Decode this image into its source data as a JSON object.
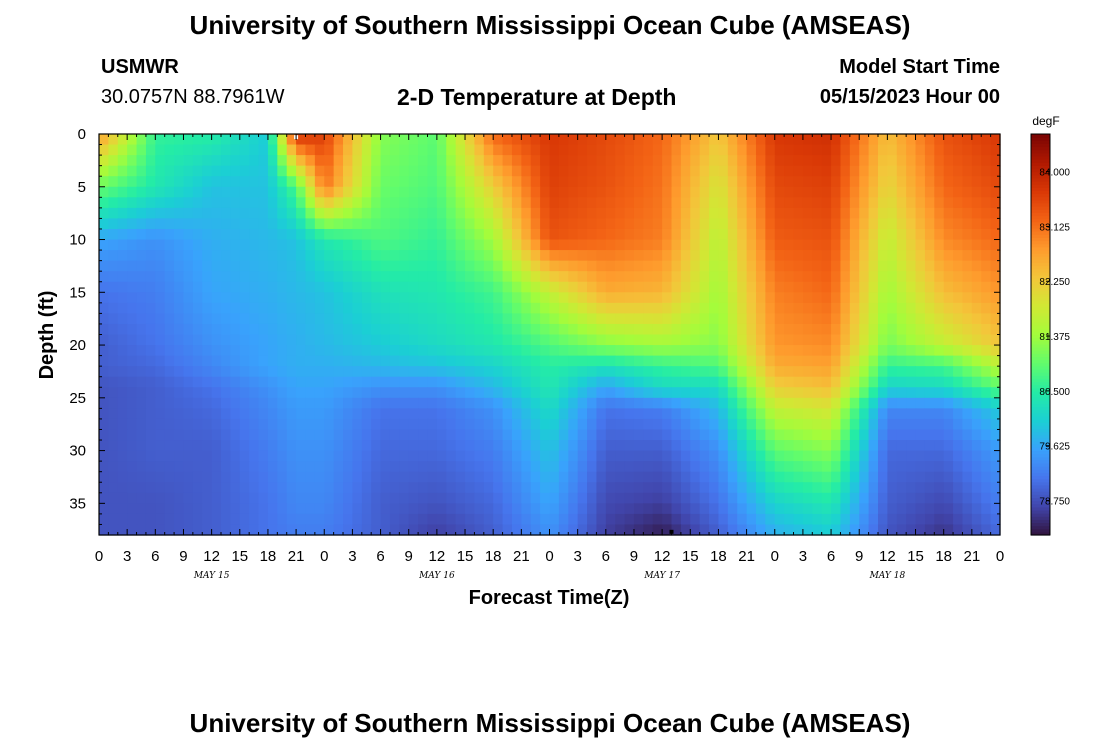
{
  "header": {
    "title": "University of Southern Mississippi Ocean Cube (AMSEAS)",
    "station": "USMWR",
    "coordinates": "30.0757N  88.7961W",
    "subtitle": "2-D Temperature at Depth",
    "model_start_label": "Model Start Time",
    "model_start_value": "05/15/2023 Hour 00"
  },
  "footer": {
    "title": "University of Southern Mississippi Ocean Cube (AMSEAS)"
  },
  "chart_data": {
    "type": "heatmap",
    "title": "2-D Temperature at Depth",
    "xlabel": "Forecast Time(Z)",
    "ylabel": "Depth (ft)",
    "x_hours_range": [
      0,
      96
    ],
    "x_tick_labels": [
      "0",
      "3",
      "6",
      "9",
      "12",
      "15",
      "18",
      "21",
      "0",
      "3",
      "6",
      "9",
      "12",
      "15",
      "18",
      "21",
      "0",
      "3",
      "6",
      "9",
      "12",
      "15",
      "18",
      "21",
      "0",
      "3",
      "6",
      "9",
      "12",
      "15",
      "18",
      "21",
      "0"
    ],
    "day_labels": [
      {
        "label": "MAY 15",
        "hour": 12
      },
      {
        "label": "MAY 16",
        "hour": 36
      },
      {
        "label": "MAY 17",
        "hour": 60
      },
      {
        "label": "MAY 18",
        "hour": 84
      }
    ],
    "y_range": [
      0,
      38
    ],
    "y_ticks": [
      0,
      5,
      10,
      15,
      20,
      25,
      30,
      35
    ],
    "colorbar": {
      "unit": "degF",
      "min": 78.2,
      "max": 84.6,
      "ticks": [
        "84.000",
        "83.125",
        "82.250",
        "81.375",
        "80.500",
        "79.625",
        "78.750"
      ],
      "colors": [
        "#30123b",
        "#4145ab",
        "#4675ed",
        "#39a2fc",
        "#1bcfd4",
        "#24eca6",
        "#61fc6c",
        "#a4fc3b",
        "#d1e834",
        "#f3c63a",
        "#fe9b2d",
        "#f36315",
        "#d93806",
        "#b11901",
        "#7a0403"
      ]
    },
    "temperature_field": {
      "depths_ft": [
        0,
        5,
        10,
        15,
        20,
        22,
        24,
        26,
        30,
        35,
        38
      ],
      "hours": [
        0,
        6,
        12,
        18,
        21,
        24,
        30,
        36,
        42,
        48,
        54,
        60,
        66,
        72,
        78,
        84,
        90,
        96
      ],
      "values_degF": [
        [
          82.8,
          80.6,
          80.5,
          80.0,
          83.8,
          83.6,
          81.2,
          80.9,
          83.2,
          83.7,
          83.5,
          83.2,
          82.3,
          83.7,
          83.8,
          82.4,
          83.4,
          83.7
        ],
        [
          81.0,
          80.4,
          79.9,
          79.9,
          80.8,
          83.1,
          81.0,
          80.8,
          82.2,
          83.6,
          83.4,
          83.1,
          81.9,
          83.5,
          83.6,
          82.1,
          83.2,
          83.5
        ],
        [
          79.6,
          79.4,
          79.7,
          79.8,
          79.9,
          80.4,
          80.8,
          80.6,
          81.4,
          83.4,
          83.2,
          83.0,
          81.6,
          83.3,
          83.4,
          81.7,
          82.9,
          83.2
        ],
        [
          79.1,
          79.2,
          79.6,
          79.7,
          79.8,
          79.9,
          80.3,
          80.4,
          80.7,
          81.7,
          82.6,
          82.5,
          81.4,
          83.0,
          83.2,
          81.4,
          82.4,
          82.8
        ],
        [
          78.9,
          79.1,
          79.4,
          79.6,
          79.7,
          79.8,
          80.0,
          80.2,
          80.4,
          80.8,
          81.2,
          81.4,
          81.2,
          82.8,
          82.9,
          81.1,
          81.7,
          82.3
        ],
        [
          78.9,
          79.0,
          79.3,
          79.6,
          79.7,
          79.7,
          79.8,
          79.9,
          80.1,
          80.5,
          80.3,
          80.6,
          80.8,
          82.6,
          82.7,
          80.6,
          80.7,
          81.6
        ],
        [
          78.8,
          78.9,
          79.1,
          79.4,
          79.6,
          79.6,
          79.4,
          79.4,
          79.8,
          80.4,
          79.6,
          80.2,
          80.2,
          82.2,
          82.4,
          80.1,
          80.2,
          80.9
        ],
        [
          78.8,
          78.9,
          79.0,
          79.3,
          79.5,
          79.5,
          79.1,
          79.1,
          79.4,
          80.2,
          79.1,
          79.2,
          79.8,
          81.7,
          81.9,
          79.3,
          79.3,
          80.0
        ],
        [
          78.8,
          78.9,
          78.9,
          79.2,
          79.4,
          79.4,
          79.0,
          79.0,
          79.2,
          79.9,
          78.9,
          78.9,
          79.4,
          80.9,
          81.2,
          79.0,
          79.0,
          79.5
        ],
        [
          78.8,
          78.8,
          78.9,
          79.1,
          79.3,
          79.3,
          78.9,
          78.8,
          79.0,
          79.6,
          78.7,
          78.6,
          79.1,
          80.1,
          80.4,
          78.9,
          78.7,
          79.2
        ],
        [
          78.8,
          78.8,
          78.9,
          79.1,
          79.2,
          79.2,
          78.9,
          78.6,
          78.9,
          79.4,
          78.6,
          78.3,
          78.9,
          79.7,
          80.0,
          78.8,
          78.5,
          79.0
        ]
      ]
    },
    "markers": [
      {
        "hour": 21,
        "depth_ft": 0.3,
        "color": "#ffffff"
      },
      {
        "hour": 61,
        "depth_ft": 37.7,
        "color": "#000000"
      }
    ]
  }
}
